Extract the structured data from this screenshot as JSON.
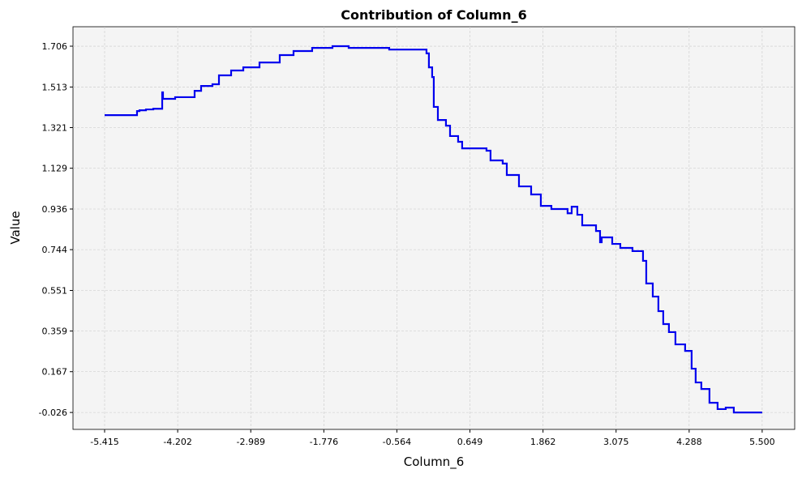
{
  "chart_data": {
    "type": "line",
    "title": "Contribution of Column_6",
    "x_label": "Column_6",
    "y_label": "Value",
    "drawstyle": "steps-post",
    "grid": true,
    "x": [
      -5.415,
      -4.877,
      -4.836,
      -4.729,
      -4.607,
      -4.486,
      -4.459,
      -4.446,
      -4.352,
      -4.244,
      -4.056,
      -3.921,
      -3.813,
      -3.625,
      -3.517,
      -3.315,
      -3.113,
      -2.844,
      -2.508,
      -2.279,
      -1.97,
      -1.633,
      -1.364,
      -0.691,
      -0.153,
      -0.072,
      -0.032,
      0.022,
      0.049,
      0.117,
      0.251,
      0.319,
      0.453,
      0.52,
      0.924,
      0.991,
      1.193,
      1.261,
      1.463,
      1.665,
      1.826,
      2.001,
      2.27,
      2.338,
      2.432,
      2.513,
      2.742,
      2.809,
      2.836,
      3.011,
      3.145,
      3.347,
      3.522,
      3.576,
      3.684,
      3.777,
      3.858,
      3.952,
      4.06,
      4.221,
      4.329,
      4.396,
      4.49,
      4.625,
      4.76,
      4.895,
      5.029,
      5.5
    ],
    "series": [
      {
        "name": "Column_6",
        "color": "#0000ee",
        "values": [
          1.38,
          1.399,
          1.403,
          1.407,
          1.41,
          1.41,
          1.488,
          1.457,
          1.457,
          1.465,
          1.465,
          1.495,
          1.518,
          1.526,
          1.568,
          1.591,
          1.606,
          1.629,
          1.664,
          1.683,
          1.698,
          1.706,
          1.698,
          1.69,
          1.69,
          1.672,
          1.606,
          1.56,
          1.419,
          1.357,
          1.33,
          1.281,
          1.254,
          1.223,
          1.212,
          1.166,
          1.151,
          1.097,
          1.043,
          1.005,
          0.951,
          0.936,
          0.916,
          0.947,
          0.909,
          0.859,
          0.832,
          0.779,
          0.802,
          0.771,
          0.752,
          0.737,
          0.691,
          0.584,
          0.522,
          0.453,
          0.392,
          0.354,
          0.296,
          0.265,
          0.181,
          0.116,
          0.085,
          0.02,
          -0.01,
          -0.003,
          -0.026,
          -0.026
        ]
      }
    ],
    "xlim": [
      -5.94,
      6.04
    ],
    "ylim": [
      -0.106,
      1.798
    ],
    "xticks": [
      -5.415,
      -4.202,
      -2.989,
      -1.776,
      -0.564,
      0.649,
      1.862,
      3.075,
      4.288,
      {
        "value": 5.5,
        "label": "5.500"
      }
    ],
    "yticks": [
      -0.026,
      0.167,
      0.359,
      0.551,
      0.744,
      0.936,
      1.129,
      1.321,
      1.513,
      1.706
    ]
  }
}
